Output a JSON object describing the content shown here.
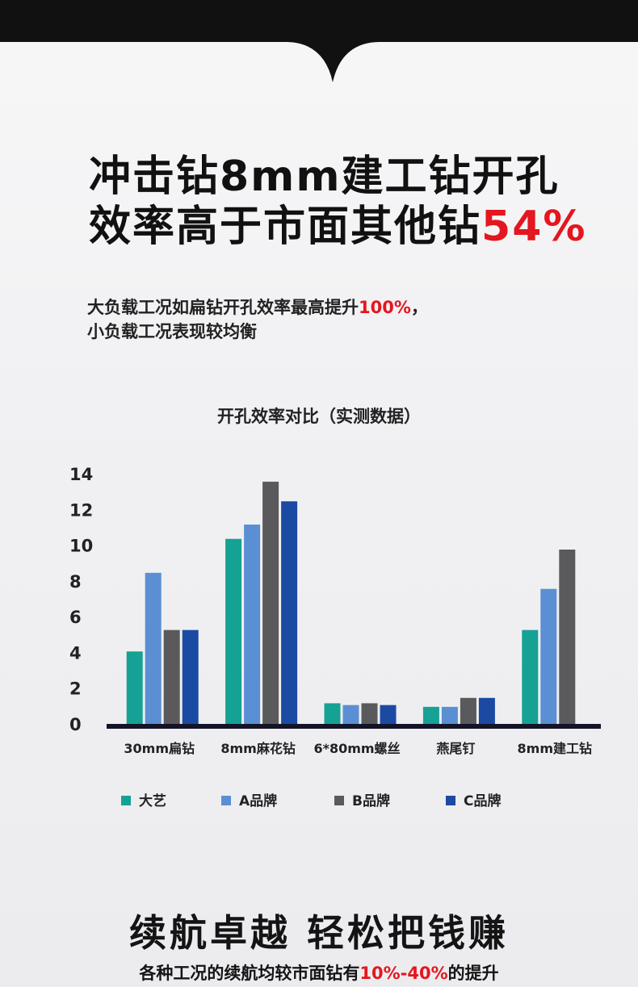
{
  "headline": {
    "line1": "冲击钻8mm建工钻开孔",
    "line2_prefix": "效率高于市面其他钻",
    "line2_accent": "54%"
  },
  "subtitle": {
    "line1_prefix": "大负载工况如扁钻开孔效率最高提升",
    "line1_accent": "100%",
    "line1_suffix": "，",
    "line2": "小负载工况表现较均衡"
  },
  "footer": {
    "title": "续航卓越  轻松把钱赚",
    "sub_prefix": "各种工况的续航均较市面钻有",
    "sub_accent": "10%-40%",
    "sub_suffix": "的提升"
  },
  "colors": {
    "accent_red": "#e4161f",
    "series": [
      "#16a195",
      "#5b8fd3",
      "#5a5a5c",
      "#1b4aa3"
    ]
  },
  "chart_data": {
    "type": "bar",
    "title": "开孔效率对比（实测数据）",
    "categories": [
      "30mm扁钻",
      "8mm麻花钻",
      "6*80mm螺丝",
      "燕尾钉",
      "8mm建工钻"
    ],
    "series": [
      {
        "name": "大艺",
        "values": [
          4.1,
          10.4,
          1.2,
          1.0,
          5.3
        ]
      },
      {
        "name": "A品牌",
        "values": [
          8.5,
          11.2,
          1.1,
          1.0,
          7.6
        ]
      },
      {
        "name": "B品牌",
        "values": [
          5.3,
          13.6,
          1.2,
          1.5,
          9.8
        ]
      },
      {
        "name": "C品牌",
        "values": [
          5.3,
          12.5,
          1.1,
          1.5,
          null
        ]
      }
    ],
    "ylim": [
      0,
      14
    ],
    "yticks": [
      0,
      2,
      4,
      6,
      8,
      10,
      12,
      14
    ],
    "grid": false,
    "legend": "bottom"
  }
}
